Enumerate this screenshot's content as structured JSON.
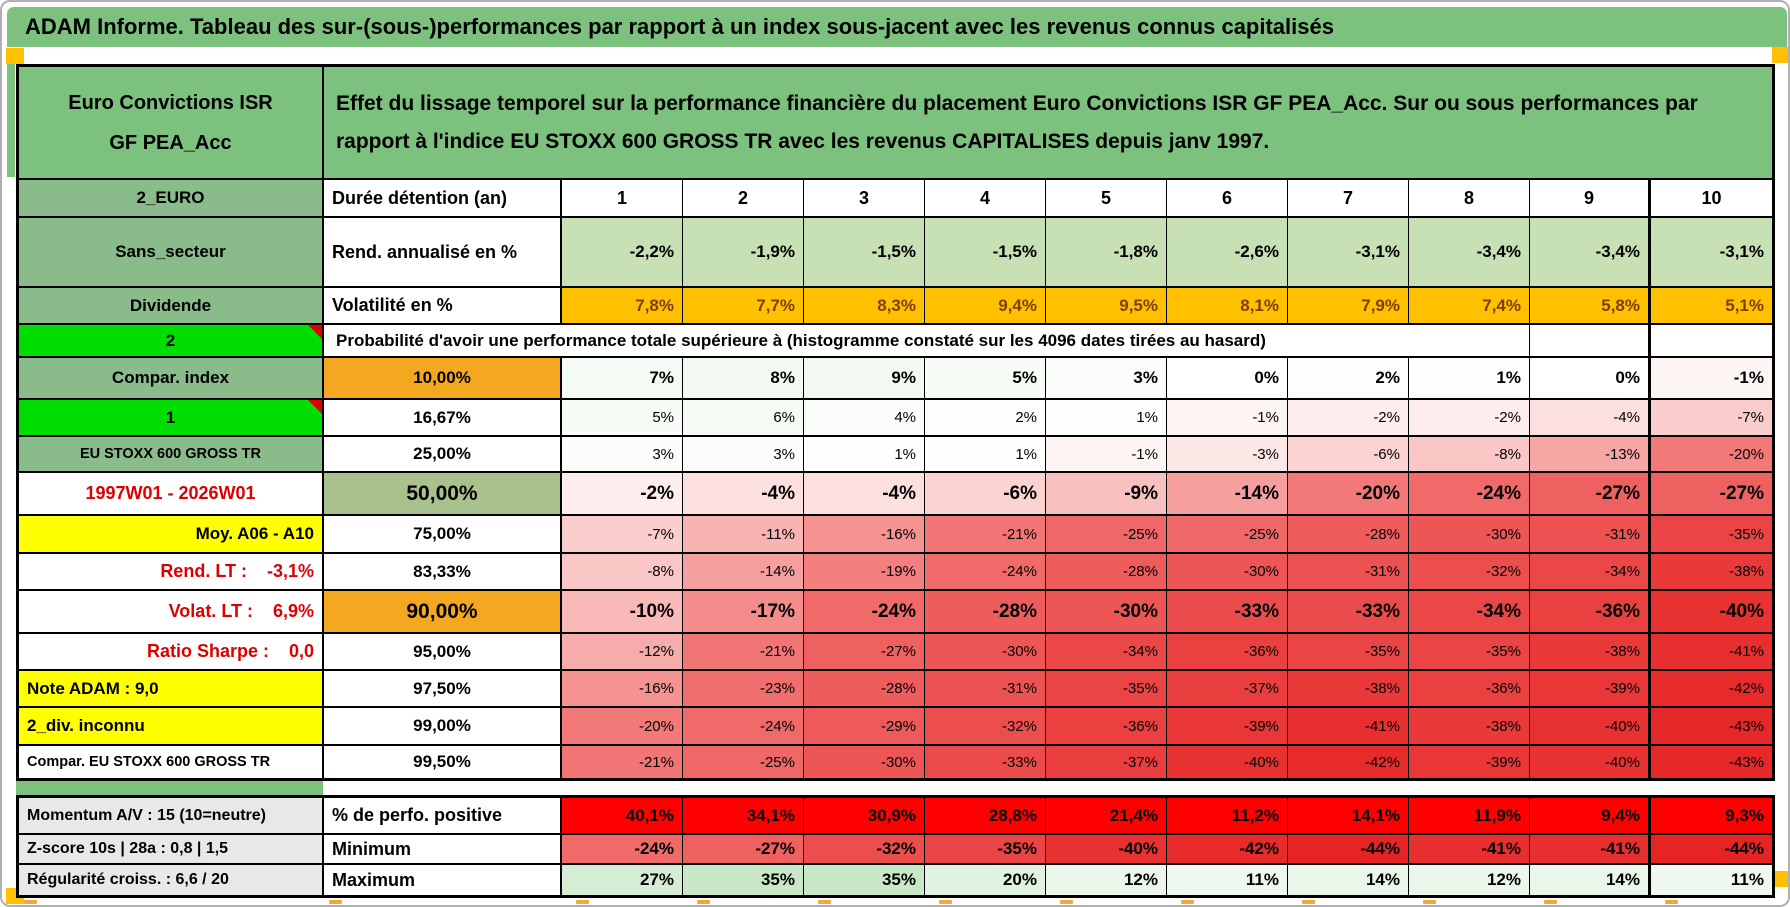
{
  "title": "ADAM Informe. Tableau des sur-(sous-)performances par rapport à un index sous-jacent avec les revenus connus capitalisés",
  "header": {
    "product": "Euro Convictions ISR GF PEA_Acc",
    "description": "Effet du lissage temporel sur la performance financière du placement Euro Convictions ISR GF PEA_Acc. Sur ou sous performances par rapport à l'indice EU STOXX 600 GROSS TR avec les revenus CAPITALISES depuis janv 1997."
  },
  "colors": {
    "green_header": "#7cc17e",
    "green_label": "#8abc8b",
    "green_bright": "#00dd00",
    "green_50": "#a9c18c",
    "orange_cell": "#f3a81f",
    "orange_vol": "#ffc000",
    "orange_corner": "#ffc000",
    "orange_tick": "#f3a83b",
    "yellow": "#ffff00",
    "red_flat": "#ff0000",
    "red_text": "#dd0000",
    "gray_label": "#e9e8e8",
    "annualized_bg": "#c7e0b4",
    "volatility_text": "#7f3f00"
  },
  "duration": {
    "corner_label": "2_EURO",
    "label": "Durée détention (an)",
    "years": [
      "1",
      "2",
      "3",
      "4",
      "5",
      "6",
      "7",
      "8",
      "9",
      "10"
    ]
  },
  "metrics": [
    {
      "label": "Sans_secteur",
      "name": "Rend. annualisé en %",
      "style": "annualized",
      "values": [
        "-2,2%",
        "-1,9%",
        "-1,5%",
        "-1,5%",
        "-1,8%",
        "-2,6%",
        "-3,1%",
        "-3,4%",
        "-3,4%",
        "-3,1%"
      ]
    },
    {
      "label": "Dividende",
      "name": "Volatilité en %",
      "style": "volatility",
      "values": [
        "7,8%",
        "7,7%",
        "8,3%",
        "9,4%",
        "9,5%",
        "8,1%",
        "7,9%",
        "7,4%",
        "5,8%",
        "5,1%"
      ]
    }
  ],
  "probability": {
    "corner_label": "2",
    "title": "Probabilité d'avoir une performance totale supérieure à (histogramme constaté sur les 4096 dates tirées au hasard)",
    "rows": [
      {
        "label": "Compar. index",
        "label_style": "green",
        "threshold": "10,00%",
        "threshold_style": "orange",
        "emphasis": "bold",
        "values": [
          7,
          8,
          9,
          5,
          3,
          0,
          2,
          1,
          0,
          -1
        ]
      },
      {
        "label": "1",
        "label_style": "bright",
        "threshold": "16,67%",
        "threshold_style": "plain",
        "emphasis": "normal",
        "values": [
          5,
          6,
          4,
          2,
          1,
          -1,
          -2,
          -2,
          -4,
          -7
        ]
      },
      {
        "label": "EU STOXX 600 GROSS TR",
        "label_style": "green-small",
        "threshold": "25,00%",
        "threshold_style": "plain",
        "emphasis": "normal",
        "values": [
          3,
          3,
          1,
          1,
          -1,
          -3,
          -6,
          -8,
          -13,
          -20
        ]
      },
      {
        "label": "1997W01 - 2026W01",
        "label_style": "red-center",
        "threshold": "50,00%",
        "threshold_style": "green-big",
        "emphasis": "big",
        "values": [
          -2,
          -4,
          -4,
          -6,
          -9,
          -14,
          -20,
          -24,
          -27,
          -27
        ]
      },
      {
        "label": "Moy. A06 - A10",
        "label_style": "yellow-right",
        "threshold": "75,00%",
        "threshold_style": "plain",
        "emphasis": "normal",
        "values": [
          -7,
          -11,
          -16,
          -21,
          -25,
          -25,
          -28,
          -30,
          -31,
          -35
        ]
      },
      {
        "label": "Rend. LT :    -3,1%",
        "label_style": "red-right",
        "threshold": "83,33%",
        "threshold_style": "plain",
        "emphasis": "normal",
        "values": [
          -8,
          -14,
          -19,
          -24,
          -28,
          -30,
          -31,
          -32,
          -34,
          -38
        ]
      },
      {
        "label": "Volat. LT :    6,9%",
        "label_style": "red-right",
        "threshold": "90,00%",
        "threshold_style": "orange-big",
        "emphasis": "big",
        "values": [
          -10,
          -17,
          -24,
          -28,
          -30,
          -33,
          -33,
          -34,
          -36,
          -40
        ]
      },
      {
        "label": "Ratio Sharpe :    0,0",
        "label_style": "red-right",
        "threshold": "95,00%",
        "threshold_style": "plain",
        "emphasis": "normal",
        "values": [
          -12,
          -21,
          -27,
          -30,
          -34,
          -36,
          -35,
          -35,
          -38,
          -41
        ]
      },
      {
        "label": "Note ADAM : 9,0",
        "label_style": "yellow-left",
        "threshold": "97,50%",
        "threshold_style": "plain",
        "emphasis": "normal",
        "values": [
          -16,
          -23,
          -28,
          -31,
          -35,
          -37,
          -38,
          -36,
          -39,
          -42
        ]
      },
      {
        "label": "2_div. inconnu",
        "label_style": "yellow-left",
        "threshold": "99,00%",
        "threshold_style": "plain",
        "emphasis": "normal",
        "values": [
          -20,
          -24,
          -29,
          -32,
          -36,
          -39,
          -41,
          -38,
          -40,
          -43
        ]
      },
      {
        "label": "Compar. EU STOXX 600 GROSS TR",
        "label_style": "plain-left-small",
        "threshold": "99,50%",
        "threshold_style": "plain",
        "emphasis": "normal",
        "values": [
          -21,
          -25,
          -30,
          -33,
          -37,
          -40,
          -42,
          -39,
          -40,
          -43
        ]
      }
    ]
  },
  "stats": {
    "rows": [
      {
        "label": "Momentum A/V : 15 (10=neutre)",
        "name": "% de perfo. positive",
        "style": "redflat",
        "values": [
          "40,1%",
          "34,1%",
          "30,9%",
          "28,8%",
          "21,4%",
          "11,2%",
          "14,1%",
          "11,9%",
          "9,4%",
          "9,3%"
        ]
      },
      {
        "label": "Z-score 10s | 28a : 0,8 | 1,5",
        "name": "Minimum",
        "style": "heat",
        "values": [
          -24,
          -27,
          -32,
          -35,
          -40,
          -42,
          -44,
          -41,
          -41,
          -44
        ]
      },
      {
        "label": "Régularité croiss. : 6,6 / 20",
        "name": "Maximum",
        "style": "heat",
        "values": [
          27,
          35,
          35,
          20,
          12,
          11,
          14,
          12,
          14,
          11
        ]
      }
    ]
  }
}
